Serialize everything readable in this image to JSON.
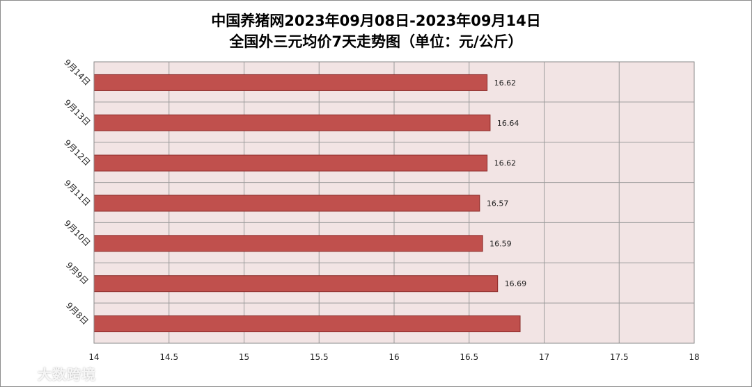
{
  "chart_data": {
    "type": "bar",
    "orientation": "horizontal",
    "title": "中国养猪网2023年09月08日-2023年09月14日",
    "subtitle": "全国外三元均价7天走势图（单位：元/公斤）",
    "categories": [
      "9月14日",
      "9月13日",
      "9月12日",
      "9月11日",
      "9月10日",
      "9月9日",
      "9月8日"
    ],
    "values": [
      16.62,
      16.64,
      16.62,
      16.57,
      16.59,
      16.69,
      16.84
    ],
    "data_labels": [
      "16.62",
      "16.64",
      "16.62",
      "16.57",
      "16.59",
      "16.69",
      ""
    ],
    "xlim": [
      14,
      18
    ],
    "x_ticks": [
      "14",
      "14.5",
      "15",
      "15.5",
      "16",
      "16.5",
      "17",
      "17.5",
      "18"
    ],
    "grid": true,
    "colors": {
      "bar_fill": "#c0504d",
      "bar_stroke": "#8b2b29",
      "plot_background": "#f2e4e4",
      "grid": "#9a9a9a"
    }
  },
  "watermark": {
    "text": "大数跨境",
    "icon": "speech-bubble-logo-icon"
  }
}
